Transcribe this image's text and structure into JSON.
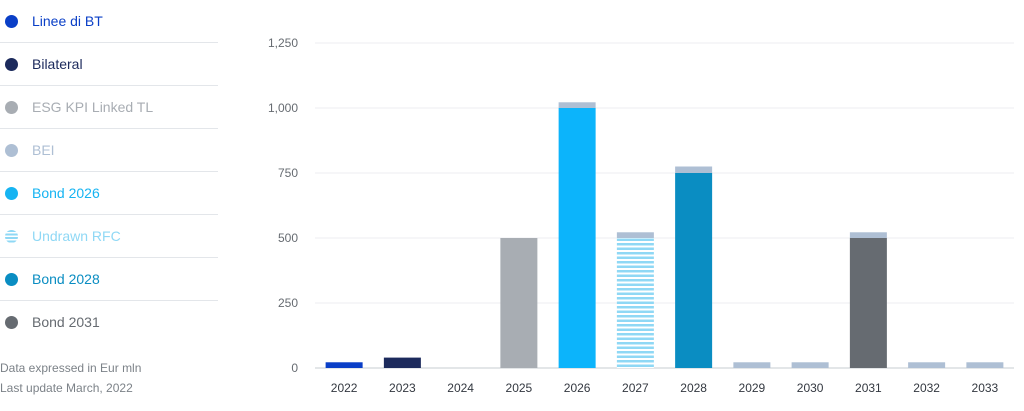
{
  "legend": [
    {
      "label": "Linee di BT",
      "color": "#0a3fc7",
      "text_color": "#0a3fc7",
      "striped": false
    },
    {
      "label": "Bilateral",
      "color": "#1c2a5c",
      "text_color": "#1c2a5c",
      "striped": false
    },
    {
      "label": "ESG KPI Linked TL",
      "color": "#a8adb3",
      "text_color": "#a8adb3",
      "striped": false
    },
    {
      "label": "BEI",
      "color": "#aebfd4",
      "text_color": "#aebfd4",
      "striped": false
    },
    {
      "label": "Bond 2026",
      "color": "#16b4f2",
      "text_color": "#16b4f2",
      "striped": false
    },
    {
      "label": "Undrawn RFC",
      "color": "#8fd8f5",
      "text_color": "#8fd8f5",
      "striped": true
    },
    {
      "label": "Bond 2028",
      "color": "#0a8dc2",
      "text_color": "#0a8dc2",
      "striped": false
    },
    {
      "label": "Bond 2031",
      "color": "#666b71",
      "text_color": "#666b71",
      "striped": false
    }
  ],
  "notes": {
    "line1": "Data expressed in Eur mln",
    "line2": "Last update March, 2022"
  },
  "chart_data": {
    "type": "bar",
    "stacked": true,
    "categories": [
      "2022",
      "2023",
      "2024",
      "2025",
      "2026",
      "2027",
      "2028",
      "2029",
      "2030",
      "2031",
      "2032",
      "2033"
    ],
    "series": [
      {
        "name": "Linee di BT",
        "color": "#0a3fc7",
        "values": [
          22,
          0,
          0,
          0,
          0,
          0,
          0,
          0,
          0,
          0,
          0,
          0
        ]
      },
      {
        "name": "Bilateral",
        "color": "#1c2a5c",
        "values": [
          0,
          40,
          0,
          0,
          0,
          0,
          0,
          0,
          0,
          0,
          0,
          0
        ]
      },
      {
        "name": "ESG KPI Linked TL",
        "color": "#a8adb3",
        "values": [
          0,
          0,
          0,
          500,
          0,
          0,
          0,
          0,
          0,
          0,
          0,
          0
        ]
      },
      {
        "name": "Bond 2026",
        "color": "#0cb4fb",
        "values": [
          0,
          0,
          0,
          0,
          1000,
          0,
          0,
          0,
          0,
          0,
          0,
          0
        ]
      },
      {
        "name": "Undrawn RFC",
        "color": "#8fd8f5",
        "striped": true,
        "values": [
          0,
          0,
          0,
          0,
          0,
          500,
          0,
          0,
          0,
          0,
          0,
          0
        ]
      },
      {
        "name": "Bond 2028",
        "color": "#0a8dc2",
        "values": [
          0,
          0,
          0,
          0,
          0,
          0,
          750,
          0,
          0,
          0,
          0,
          0
        ]
      },
      {
        "name": "Bond 2031",
        "color": "#666b71",
        "values": [
          0,
          0,
          0,
          0,
          0,
          0,
          0,
          0,
          0,
          500,
          0,
          0
        ]
      },
      {
        "name": "BEI",
        "color": "#aebfd4",
        "values": [
          0,
          0,
          0,
          0,
          22,
          22,
          25,
          22,
          22,
          22,
          22,
          22
        ]
      }
    ],
    "yticks": [
      "0",
      "250",
      "500",
      "750",
      "1,000",
      "1,250"
    ],
    "ytick_values": [
      0,
      250,
      500,
      750,
      1000,
      1250
    ],
    "ylim": [
      0,
      1250
    ],
    "grid": true,
    "legend_position": "left"
  }
}
